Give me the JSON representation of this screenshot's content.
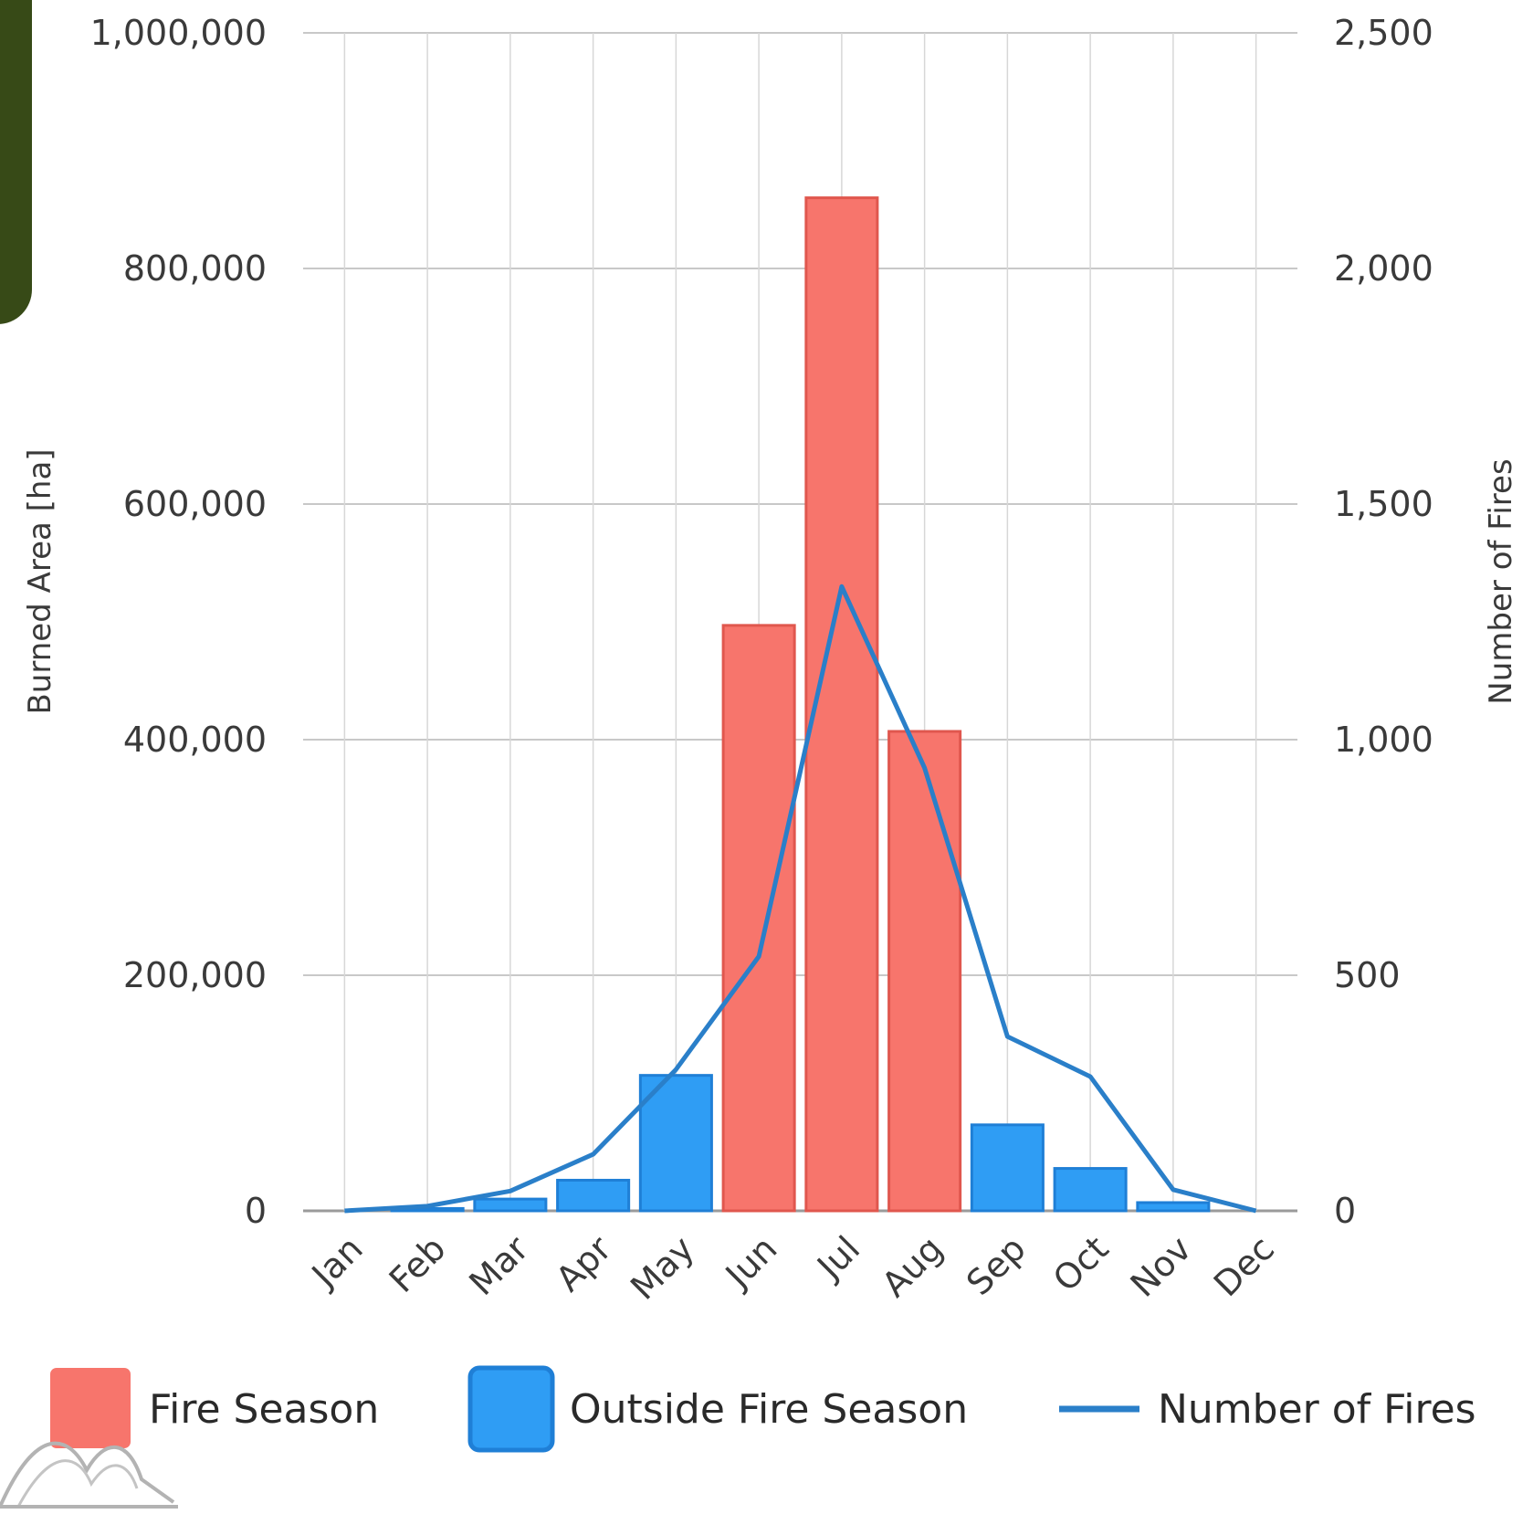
{
  "chart_data": {
    "type": "bar",
    "categories": [
      "Jan",
      "Feb",
      "Mar",
      "Apr",
      "May",
      "Jun",
      "Jul",
      "Aug",
      "Sep",
      "Oct",
      "Nov",
      "Dec"
    ],
    "series": [
      {
        "name": "Fire Season",
        "kind": "bar",
        "axis": "left",
        "color": "#f7756c",
        "values": [
          0,
          0,
          0,
          0,
          0,
          497000,
          860000,
          407000,
          0,
          0,
          0,
          0
        ]
      },
      {
        "name": "Outside Fire Season",
        "kind": "bar",
        "axis": "left",
        "color": "#2f9df4",
        "values": [
          0,
          2000,
          10000,
          26000,
          115000,
          0,
          0,
          0,
          73000,
          36000,
          7000,
          0
        ]
      },
      {
        "name": "Number of Fires",
        "kind": "line",
        "axis": "right",
        "color": "#2a7fc9",
        "values": [
          0,
          10,
          42,
          120,
          300,
          540,
          1325,
          940,
          370,
          285,
          45,
          0
        ]
      }
    ],
    "title": "",
    "xlabel": "",
    "ylabel": "Burned Area [ha]",
    "y2label": "Number of Fires",
    "ylim": [
      0,
      1000000
    ],
    "y2lim": [
      0,
      2500
    ],
    "yticks": [
      0,
      200000,
      400000,
      600000,
      800000,
      1000000
    ],
    "ytick_labels": [
      "0",
      "200,000",
      "400,000",
      "600,000",
      "800,000",
      "1,000,000"
    ],
    "y2ticks": [
      0,
      500,
      1000,
      1500,
      2000,
      2500
    ],
    "y2tick_labels": [
      "0",
      "500",
      "1,000",
      "1,500",
      "2,000",
      "2,500"
    ],
    "grid": true,
    "legend": "bottom",
    "colors": {
      "fire_season": "#f7756c",
      "outside_fire_season": "#2f9df4",
      "number_of_fires": "#2a7fc9",
      "corner_panel": "#374a17",
      "grid": "#c8c8c8"
    }
  }
}
